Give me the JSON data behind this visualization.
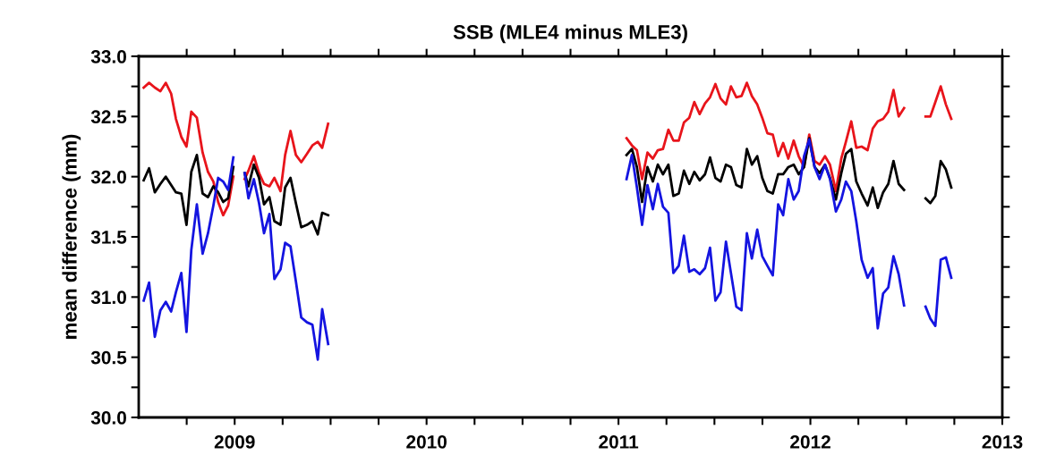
{
  "chart_data": {
    "type": "line",
    "title": "SSB (MLE4 minus MLE3)",
    "ylabel": "mean difference (mm)",
    "x": [
      2008.526,
      2008.554,
      2008.584,
      2008.613,
      2008.641,
      2008.669,
      2008.694,
      2008.722,
      2008.749,
      2008.774,
      2008.803,
      2008.833,
      2008.861,
      2008.889,
      2008.914,
      2008.94,
      2008.966,
      2008.993,
      2009.02,
      2009.052,
      2009.072,
      2009.1,
      2009.127,
      2009.153,
      2009.181,
      2009.207,
      2009.239,
      2009.263,
      2009.291,
      2009.319,
      2009.347,
      2009.377,
      2009.405,
      2009.433,
      2009.456,
      2009.487,
      2010.3,
      2011.042,
      2011.07,
      2011.096,
      2011.123,
      2011.151,
      2011.179,
      2011.205,
      2011.232,
      2011.26,
      2011.286,
      2011.314,
      2011.341,
      2011.369,
      2011.395,
      2011.423,
      2011.451,
      2011.477,
      2011.505,
      2011.532,
      2011.56,
      2011.586,
      2011.614,
      2011.641,
      2011.669,
      2011.695,
      2011.723,
      2011.749,
      2011.776,
      2011.804,
      2011.832,
      2011.858,
      2011.885,
      2011.913,
      2011.939,
      2011.967,
      2011.994,
      2012.022,
      2012.048,
      2012.076,
      2012.102,
      2012.133,
      2012.161,
      2012.185,
      2012.213,
      2012.239,
      2012.267,
      2012.298,
      2012.325,
      2012.351,
      2012.379,
      2012.406,
      2012.433,
      2012.46,
      2012.488,
      2012.55,
      2012.6,
      2012.625,
      2012.651,
      2012.679,
      2012.706,
      2012.734
    ],
    "series": [
      {
        "color": "#e8141b",
        "values": [
          32.74,
          32.78,
          32.74,
          32.71,
          32.78,
          32.69,
          32.48,
          32.33,
          32.25,
          32.54,
          32.49,
          32.2,
          32.04,
          31.96,
          31.79,
          31.68,
          31.76,
          32.0,
          null,
          31.98,
          32.05,
          32.17,
          32.03,
          31.94,
          31.92,
          31.99,
          31.88,
          32.18,
          32.38,
          32.18,
          32.12,
          32.19,
          32.26,
          32.29,
          32.24,
          32.44,
          null,
          32.32,
          32.26,
          32.22,
          31.98,
          32.2,
          32.15,
          32.22,
          32.23,
          32.39,
          32.3,
          32.3,
          32.45,
          32.49,
          32.62,
          32.52,
          32.61,
          32.66,
          32.77,
          32.65,
          32.6,
          32.75,
          32.66,
          32.67,
          32.78,
          32.67,
          32.6,
          32.49,
          32.36,
          32.35,
          32.17,
          32.28,
          32.15,
          32.3,
          32.17,
          32.08,
          32.35,
          32.13,
          32.1,
          32.17,
          32.1,
          31.88,
          32.15,
          32.29,
          32.46,
          32.24,
          32.25,
          32.22,
          32.4,
          32.46,
          32.48,
          32.54,
          32.72,
          32.5,
          32.57,
          null,
          32.5,
          32.5,
          32.62,
          32.75,
          32.6,
          32.48
        ]
      },
      {
        "color": "#000000",
        "values": [
          31.97,
          32.07,
          31.87,
          31.94,
          32.0,
          31.93,
          31.87,
          31.86,
          31.6,
          32.04,
          32.18,
          31.86,
          31.83,
          31.92,
          31.87,
          31.79,
          31.82,
          32.08,
          null,
          32.03,
          31.92,
          32.1,
          31.99,
          31.77,
          31.83,
          31.63,
          31.6,
          31.91,
          31.99,
          31.78,
          31.58,
          31.6,
          31.63,
          31.52,
          31.7,
          31.68,
          null,
          32.18,
          32.23,
          32.08,
          31.79,
          32.08,
          31.96,
          32.1,
          32.02,
          32.1,
          31.84,
          31.86,
          32.05,
          31.94,
          32.04,
          31.97,
          32.02,
          32.16,
          31.99,
          31.96,
          32.1,
          32.08,
          31.93,
          31.91,
          32.23,
          32.1,
          32.17,
          31.99,
          31.88,
          31.86,
          32.02,
          32.02,
          32.08,
          32.1,
          32.02,
          32.08,
          32.32,
          32.08,
          32.03,
          32.1,
          31.99,
          31.81,
          32.03,
          32.19,
          32.23,
          31.96,
          31.86,
          31.76,
          31.91,
          31.74,
          31.87,
          31.94,
          32.13,
          31.94,
          31.89,
          null,
          31.82,
          31.78,
          31.84,
          32.13,
          32.06,
          31.91
        ]
      },
      {
        "color": "#1414e0",
        "values": [
          30.97,
          31.12,
          30.67,
          30.89,
          30.96,
          30.88,
          31.04,
          31.2,
          30.71,
          31.39,
          31.77,
          31.36,
          31.53,
          31.76,
          31.99,
          31.96,
          31.89,
          32.16,
          null,
          32.03,
          31.82,
          31.98,
          31.78,
          31.53,
          31.69,
          31.15,
          31.23,
          31.45,
          31.42,
          31.13,
          30.83,
          30.79,
          30.77,
          30.48,
          30.9,
          30.61,
          null,
          31.98,
          32.18,
          31.91,
          31.6,
          31.93,
          31.73,
          31.94,
          31.75,
          31.7,
          31.2,
          31.26,
          31.51,
          31.21,
          31.23,
          31.19,
          31.24,
          31.41,
          30.97,
          31.04,
          31.46,
          31.2,
          30.92,
          30.89,
          31.53,
          31.32,
          31.56,
          31.34,
          31.26,
          31.18,
          31.77,
          31.68,
          31.98,
          31.81,
          31.88,
          32.17,
          32.31,
          32.08,
          31.98,
          32.1,
          31.98,
          31.71,
          31.81,
          31.96,
          31.88,
          31.63,
          31.31,
          31.16,
          31.24,
          30.74,
          31.03,
          31.08,
          31.34,
          31.19,
          30.93,
          null,
          30.92,
          30.82,
          30.76,
          31.31,
          31.33,
          31.16
        ]
      }
    ],
    "xlim": [
      2008.5,
      2013
    ],
    "xticks": [
      {
        "value": 2008.75,
        "label": null
      },
      2009,
      {
        "value": 2009.25,
        "label": null
      },
      {
        "value": 2009.5,
        "label": null
      },
      {
        "value": 2009.75,
        "label": null
      },
      2010,
      {
        "value": 2010.25,
        "label": null
      },
      {
        "value": 2010.5,
        "label": null
      },
      {
        "value": 2010.75,
        "label": null
      },
      2011,
      {
        "value": 2011.25,
        "label": null
      },
      {
        "value": 2011.5,
        "label": null
      },
      {
        "value": 2011.75,
        "label": null
      },
      2012,
      {
        "value": 2012.25,
        "label": null
      },
      {
        "value": 2012.5,
        "label": null
      },
      {
        "value": 2012.75,
        "label": null
      },
      2013
    ],
    "ylim": [
      30,
      33
    ],
    "yticks": [
      {
        "value": 30,
        "label": "30.0"
      },
      {
        "value": 30.25,
        "label": null
      },
      {
        "value": 30.5,
        "label": "30.5"
      },
      {
        "value": 30.75,
        "label": null
      },
      {
        "value": 31,
        "label": "31.0"
      },
      {
        "value": 31.25,
        "label": null
      },
      {
        "value": 31.5,
        "label": "31.5"
      },
      {
        "value": 31.75,
        "label": null
      },
      {
        "value": 32,
        "label": "32.0"
      },
      {
        "value": 32.25,
        "label": null
      },
      {
        "value": 32.5,
        "label": "32.5"
      },
      {
        "value": 32.75,
        "label": null
      },
      {
        "value": 33,
        "label": "33.0"
      }
    ],
    "grid": false,
    "legend": false,
    "marker": "none",
    "line_style": "solid"
  }
}
